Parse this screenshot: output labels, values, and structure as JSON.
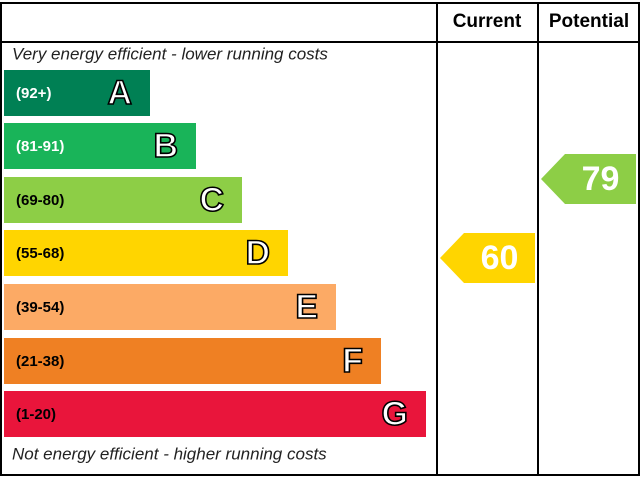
{
  "header": {
    "current": "Current",
    "potential": "Potential"
  },
  "top_note": "Very energy efficient - lower running costs",
  "bottom_note": "Not energy efficient - higher running costs",
  "bands": [
    {
      "range": "(92+)",
      "letter": "A",
      "color": "#008054"
    },
    {
      "range": "(81-91)",
      "letter": "B",
      "color": "#19b459"
    },
    {
      "range": "(69-80)",
      "letter": "C",
      "color": "#8dce46"
    },
    {
      "range": "(55-68)",
      "letter": "D",
      "color": "#ffd500"
    },
    {
      "range": "(39-54)",
      "letter": "E",
      "color": "#fcaa65"
    },
    {
      "range": "(21-38)",
      "letter": "F",
      "color": "#ef8023"
    },
    {
      "range": "(1-20)",
      "letter": "G",
      "color": "#e9153b"
    }
  ],
  "current": 60,
  "potential": 79
}
